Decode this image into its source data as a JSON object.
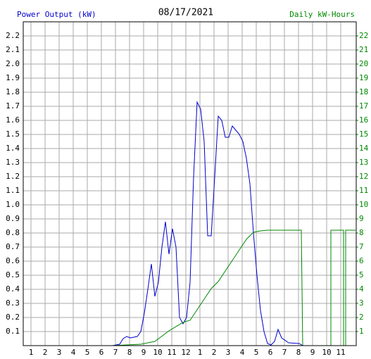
{
  "chart_data": {
    "type": "line",
    "title": "08/17/2021",
    "y_label": "Power Output (kW)",
    "y2_label": "Daily kW-Hours",
    "grid": true,
    "xlim": [
      0.45,
      24.1
    ],
    "xticks": [
      1,
      2,
      3,
      4,
      5,
      6,
      7,
      8,
      9,
      10,
      11,
      12,
      {
        "value": 13,
        "label": "1"
      },
      {
        "value": 14,
        "label": "2"
      },
      {
        "value": 15,
        "label": "3"
      },
      {
        "value": 16,
        "label": "4"
      },
      {
        "value": 17,
        "label": "5"
      },
      {
        "value": 18,
        "label": "6"
      },
      {
        "value": 19,
        "label": "7"
      },
      {
        "value": 20,
        "label": "8"
      },
      {
        "value": 21,
        "label": "9"
      },
      {
        "value": 22,
        "label": "10"
      },
      {
        "value": 23,
        "label": "11"
      }
    ],
    "ylim": [
      0,
      2.3
    ],
    "yticks": [
      0.1,
      0.2,
      0.3,
      0.4,
      0.5,
      0.6,
      0.7,
      0.8,
      0.9,
      {
        "value": 1,
        "label": "1.0"
      },
      1.1,
      1.2,
      1.3,
      1.4,
      1.5,
      1.6,
      1.7,
      1.8,
      1.9,
      {
        "value": 2,
        "label": "2.0"
      },
      2.1,
      2.2
    ],
    "y2lim": [
      0,
      23
    ],
    "y2ticks": [
      1,
      2,
      3,
      4,
      5,
      6,
      7,
      8,
      9,
      10,
      11,
      12,
      13,
      14,
      15,
      16,
      17,
      18,
      19,
      20,
      21,
      22
    ],
    "series": [
      {
        "name": "Power Output (kW)",
        "color": "#0000cc",
        "x": [
          6.8,
          7.3,
          7.55,
          7.8,
          8.05,
          8.55,
          8.8,
          9.05,
          9.3,
          9.55,
          9.8,
          10.05,
          10.3,
          10.55,
          10.8,
          11.05,
          11.3,
          11.55,
          11.8,
          12.05,
          12.3,
          12.55,
          12.8,
          13.05,
          13.3,
          13.55,
          13.8,
          14.05,
          14.3,
          14.55,
          14.8,
          15.05,
          15.3,
          15.55,
          15.8,
          16.05,
          16.3,
          16.55,
          16.8,
          17.05,
          17.3,
          17.55,
          17.8,
          18.05,
          18.3,
          18.55,
          18.8,
          19.3,
          20.05,
          20.3
        ],
        "values": [
          0,
          0.01,
          0.05,
          0.065,
          0.055,
          0.065,
          0.1,
          0.23,
          0.4,
          0.58,
          0.35,
          0.45,
          0.7,
          0.88,
          0.65,
          0.83,
          0.7,
          0.2,
          0.155,
          0.2,
          0.45,
          1.2,
          1.73,
          1.68,
          1.45,
          0.78,
          0.78,
          1.2,
          1.63,
          1.6,
          1.48,
          1.48,
          1.56,
          1.53,
          1.5,
          1.45,
          1.33,
          1.15,
          0.8,
          0.5,
          0.25,
          0.1,
          0.015,
          0.005,
          0.03,
          0.115,
          0.055,
          0.02,
          0.015,
          0
        ]
      },
      {
        "name": "Daily kW-Hours",
        "color": "#008800",
        "axis": "y2",
        "x": [
          6.8,
          8.8,
          9.8,
          10.8,
          11.8,
          12.3,
          12.8,
          13.3,
          13.8,
          14.3,
          14.8,
          15.3,
          15.8,
          16.3,
          16.8,
          17.3,
          17.8,
          20.2,
          20.3,
          22.3,
          22.3,
          23.2,
          23.2,
          23.35,
          23.35,
          24.05
        ],
        "values": [
          0,
          0.1,
          0.3,
          1.05,
          1.65,
          1.8,
          2.55,
          3.3,
          4.05,
          4.55,
          5.3,
          6.05,
          6.8,
          7.55,
          8.05,
          8.15,
          8.2,
          8.2,
          0,
          0,
          8.2,
          8.2,
          0,
          0,
          8.2,
          8.2
        ]
      }
    ]
  }
}
